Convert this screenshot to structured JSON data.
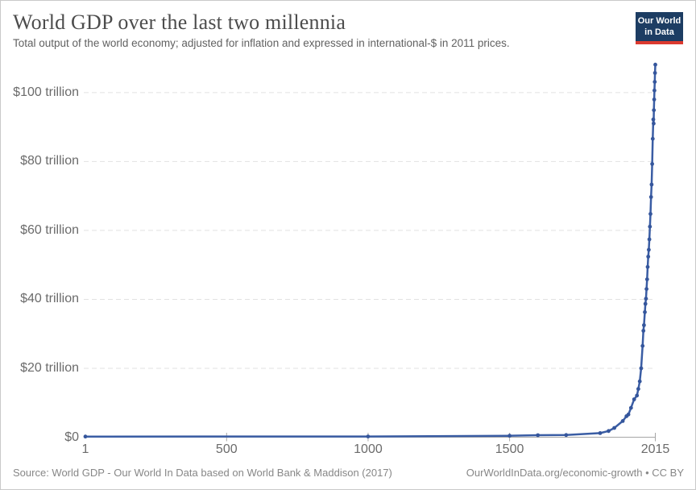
{
  "header": {
    "title": "World GDP over the last two millennia",
    "subtitle": "Total output of the world economy; adjusted for inflation and expressed in international-$ in 2011 prices.",
    "logo": {
      "line1": "Our World",
      "line2": "in Data",
      "bg_color": "#1d3d63",
      "accent_color": "#dc3a2f"
    }
  },
  "footer": {
    "source": "Source: World GDP - Our World In Data based on World Bank & Maddison (2017)",
    "link": "OurWorldInData.org/economic-growth • CC BY"
  },
  "chart_data": {
    "type": "line",
    "title": "World GDP over the last two millennia",
    "series_name": "World GDP",
    "unit": "trillion international-$ (2011 prices)",
    "x": [
      1,
      1000,
      1500,
      1600,
      1700,
      1820,
      1850,
      1870,
      1900,
      1913,
      1920,
      1929,
      1940,
      1950,
      1955,
      1960,
      1965,
      1970,
      1973,
      1975,
      1978,
      1980,
      1982,
      1984,
      1986,
      1988,
      1990,
      1992,
      1994,
      1996,
      1998,
      2000,
      2002,
      2004,
      2006,
      2008,
      2009,
      2010,
      2011,
      2012,
      2013,
      2014,
      2015
    ],
    "values": [
      0.18,
      0.21,
      0.43,
      0.58,
      0.64,
      1.2,
      1.8,
      2.7,
      4.7,
      6.1,
      6.6,
      8.5,
      11.0,
      12.1,
      14.0,
      16.2,
      20.0,
      26.5,
      30.9,
      32.5,
      36.3,
      38.7,
      40.2,
      43.0,
      45.8,
      49.4,
      52.4,
      54.4,
      57.4,
      61.1,
      64.8,
      69.7,
      73.3,
      79.3,
      86.6,
      92.2,
      91.0,
      94.9,
      98.0,
      100.6,
      103.1,
      105.7,
      108.1
    ],
    "xlim": [
      1,
      2015
    ],
    "ylim": [
      0,
      110
    ],
    "grid": true,
    "legend_position": "none",
    "x_ticks": [
      {
        "value": 1,
        "label": "1"
      },
      {
        "value": 500,
        "label": "500"
      },
      {
        "value": 1000,
        "label": "1000"
      },
      {
        "value": 1500,
        "label": "1500"
      },
      {
        "value": 2015,
        "label": "2015"
      }
    ],
    "y_ticks": [
      {
        "value": 0,
        "label": "$0"
      },
      {
        "value": 20,
        "label": "$20 trillion"
      },
      {
        "value": 40,
        "label": "$40 trillion"
      },
      {
        "value": 60,
        "label": "$60 trillion"
      },
      {
        "value": 80,
        "label": "$80 trillion"
      },
      {
        "value": 100,
        "label": "$100 trillion"
      }
    ],
    "line_color": "#3a5da4",
    "marker_color": "#35569c",
    "grid_color": "#e2e2e2",
    "axis_color": "#a6a6a6",
    "axis_text_color": "#6b6b6b"
  }
}
